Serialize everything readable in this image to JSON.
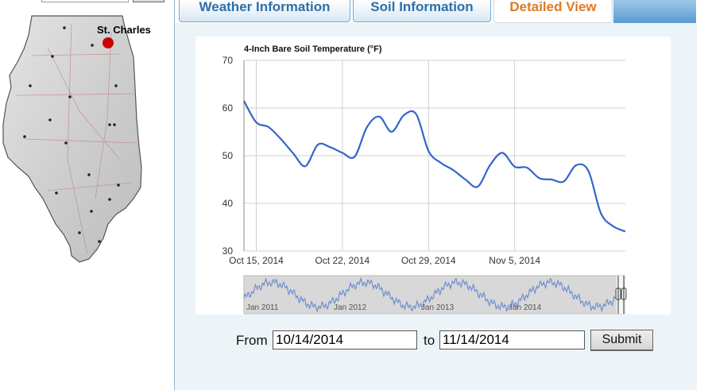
{
  "map": {
    "city_label": "St. Charles",
    "highlight_color": "#cc0000"
  },
  "tabs": [
    {
      "label": "Weather Information",
      "active": false
    },
    {
      "label": "Soil Information",
      "active": false
    },
    {
      "label": "Detailed View",
      "active": true
    }
  ],
  "chart_data": {
    "type": "line",
    "title": "4-Inch Bare Soil Temperature (°F)",
    "xlabel": "",
    "ylabel": "",
    "ylim": [
      30,
      70
    ],
    "yticks": [
      "70",
      "60",
      "50",
      "40",
      "30"
    ],
    "xlim": [
      "2014-10-14",
      "2014-11-14"
    ],
    "xticks": [
      "Oct 15, 2014",
      "Oct 22, 2014",
      "Oct 29, 2014",
      "Nov 5, 2014"
    ],
    "grid": true,
    "line_color": "#3366cc",
    "series": [
      {
        "x": [
          "2014-10-14",
          "2014-10-15",
          "2014-10-16",
          "2014-10-17",
          "2014-10-18",
          "2014-10-19",
          "2014-10-20",
          "2014-10-21",
          "2014-10-22",
          "2014-10-23",
          "2014-10-24",
          "2014-10-25",
          "2014-10-26",
          "2014-10-27",
          "2014-10-28",
          "2014-10-29",
          "2014-10-30",
          "2014-10-31",
          "2014-11-01",
          "2014-11-02",
          "2014-11-03",
          "2014-11-04",
          "2014-11-05",
          "2014-11-06",
          "2014-11-07",
          "2014-11-08",
          "2014-11-09",
          "2014-11-10",
          "2014-11-11",
          "2014-11-12",
          "2014-11-13",
          "2014-11-14"
        ],
        "values": [
          61.5,
          57.0,
          56.0,
          53.5,
          50.5,
          47.8,
          52.3,
          51.8,
          50.6,
          49.8,
          56.0,
          58.2,
          55.0,
          58.5,
          58.7,
          51.0,
          48.5,
          47.0,
          45.0,
          43.5,
          48.0,
          50.6,
          47.7,
          47.5,
          45.3,
          45.0,
          44.6,
          48.0,
          46.8,
          38.0,
          35.2,
          34.1
        ]
      }
    ],
    "navigator": {
      "labels": [
        "Jan 2011",
        "Jan 2012",
        "Jan 2013",
        "Jan 2014"
      ]
    }
  },
  "form": {
    "from_label": "From",
    "to_label": "to",
    "from_value": "10/14/2014",
    "to_value": "11/14/2014",
    "submit_label": "Submit"
  }
}
